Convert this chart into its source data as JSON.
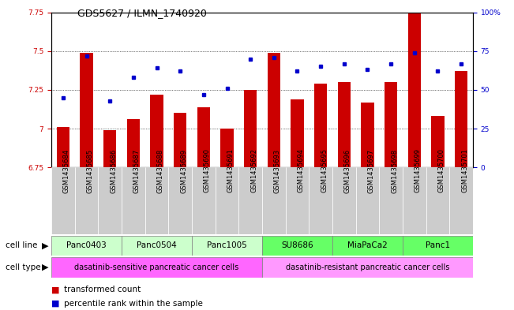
{
  "title": "GDS5627 / ILMN_1740920",
  "samples": [
    "GSM1435684",
    "GSM1435685",
    "GSM1435686",
    "GSM1435687",
    "GSM1435688",
    "GSM1435689",
    "GSM1435690",
    "GSM1435691",
    "GSM1435692",
    "GSM1435693",
    "GSM1435694",
    "GSM1435695",
    "GSM1435696",
    "GSM1435697",
    "GSM1435698",
    "GSM1435699",
    "GSM1435700",
    "GSM1435701"
  ],
  "transformed_count": [
    7.01,
    7.49,
    6.99,
    7.06,
    7.22,
    7.1,
    7.14,
    7.0,
    7.25,
    7.49,
    7.19,
    7.29,
    7.3,
    7.17,
    7.3,
    7.83,
    7.08,
    7.37
  ],
  "percentile_rank": [
    45,
    72,
    43,
    58,
    64,
    62,
    47,
    51,
    70,
    71,
    62,
    65,
    67,
    63,
    67,
    74,
    62,
    67
  ],
  "ylim_left": [
    6.75,
    7.75
  ],
  "ylim_right": [
    0,
    100
  ],
  "yticks_left": [
    6.75,
    7.0,
    7.25,
    7.5,
    7.75
  ],
  "yticks_right": [
    0,
    25,
    50,
    75,
    100
  ],
  "ytick_labels_left": [
    "6.75",
    "7",
    "7.25",
    "7.5",
    "7.75"
  ],
  "ytick_labels_right": [
    "0",
    "25",
    "50",
    "75",
    "100%"
  ],
  "grid_values": [
    7.0,
    7.25,
    7.5
  ],
  "bar_color": "#cc0000",
  "dot_color": "#0000cc",
  "sample_box_color": "#cccccc",
  "cell_lines": [
    {
      "name": "Panc0403",
      "start": 0,
      "end": 2,
      "color": "#ccffcc"
    },
    {
      "name": "Panc0504",
      "start": 3,
      "end": 5,
      "color": "#ccffcc"
    },
    {
      "name": "Panc1005",
      "start": 6,
      "end": 8,
      "color": "#ccffcc"
    },
    {
      "name": "SU8686",
      "start": 9,
      "end": 11,
      "color": "#66ff66"
    },
    {
      "name": "MiaPaCa2",
      "start": 12,
      "end": 14,
      "color": "#66ff66"
    },
    {
      "name": "Panc1",
      "start": 15,
      "end": 17,
      "color": "#66ff66"
    }
  ],
  "cell_types": [
    {
      "name": "dasatinib-sensitive pancreatic cancer cells",
      "start": 0,
      "end": 8,
      "color": "#ff66ff"
    },
    {
      "name": "dasatinib-resistant pancreatic cancer cells",
      "start": 9,
      "end": 17,
      "color": "#ff99ff"
    }
  ],
  "cell_line_label": "cell line",
  "cell_type_label": "cell type",
  "legend_bar_label": "transformed count",
  "legend_dot_label": "percentile rank within the sample",
  "bar_width": 0.55,
  "tick_label_fontsize": 6.5,
  "sample_label_fontsize": 6.0,
  "row_label_fontsize": 7.5,
  "cell_line_fontsize": 7.5,
  "cell_type_fontsize": 7.0,
  "legend_fontsize": 7.5
}
